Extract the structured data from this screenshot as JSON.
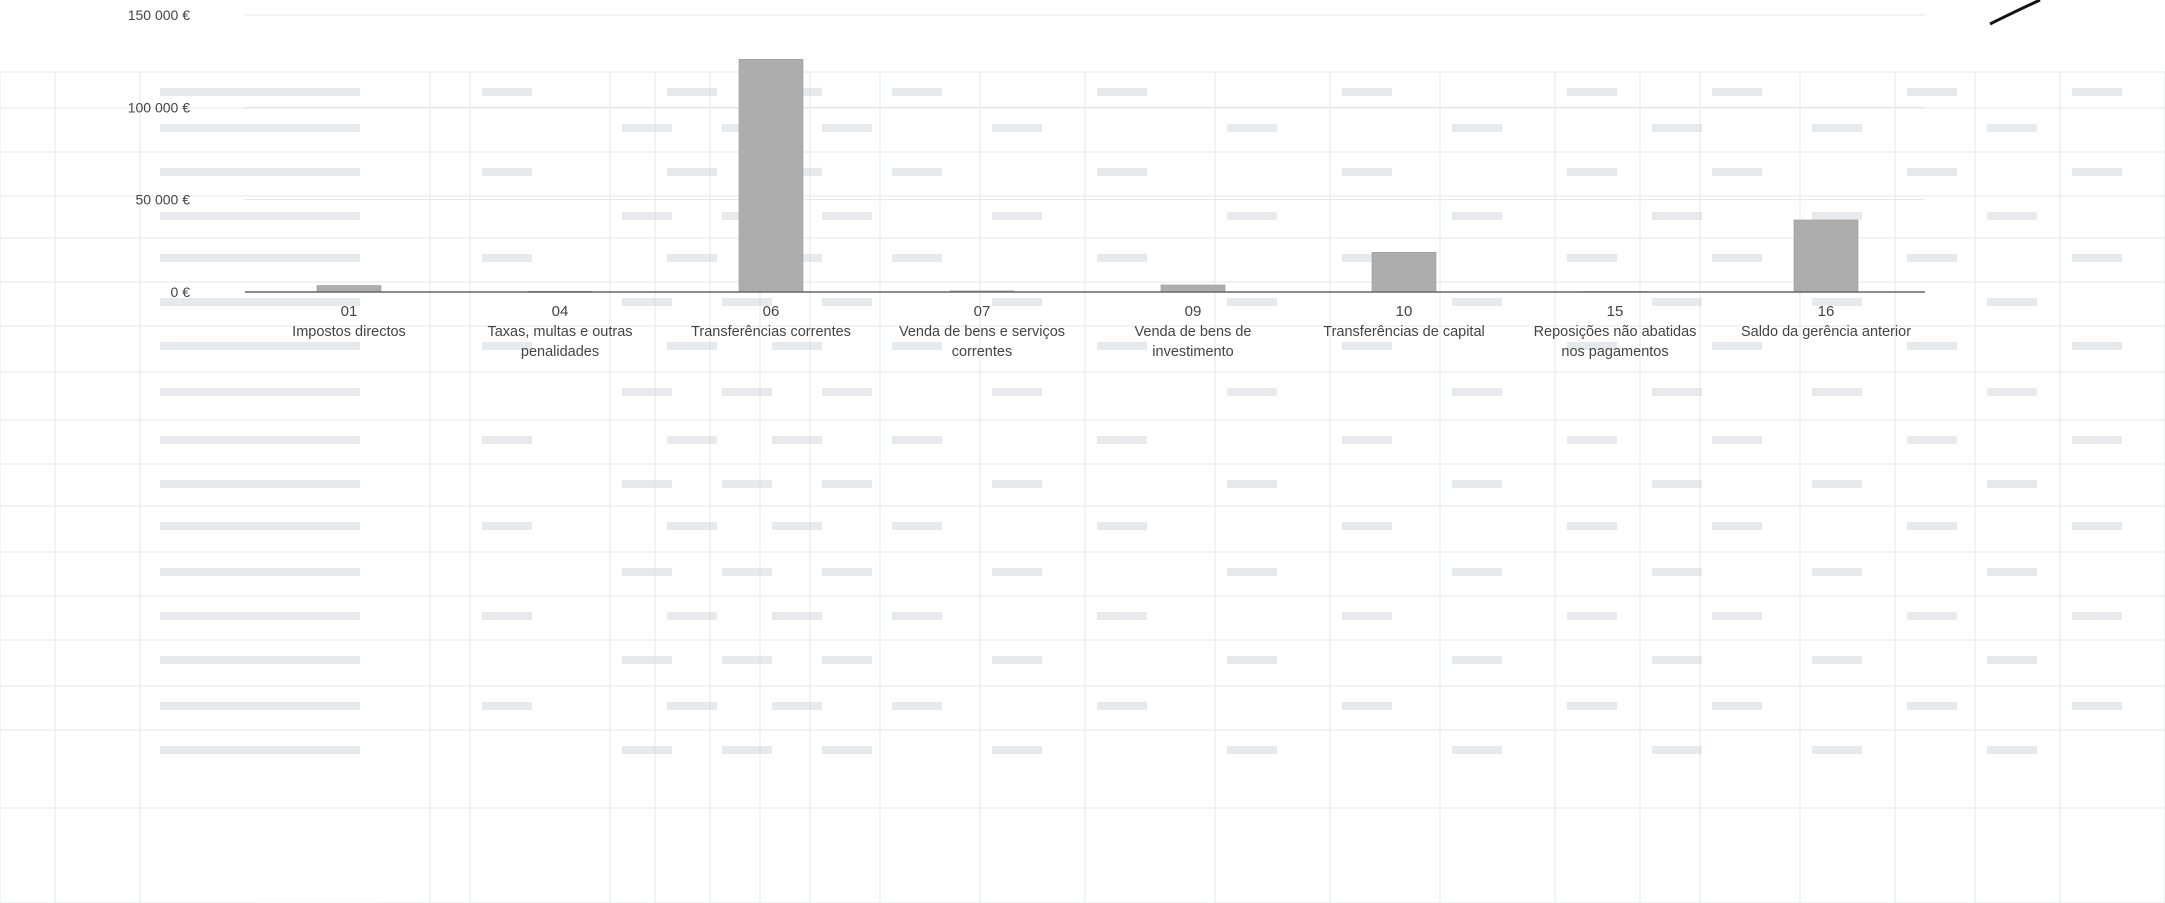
{
  "chart_data": {
    "type": "bar",
    "categories": [
      {
        "code": "01",
        "label": [
          "Impostos directos"
        ]
      },
      {
        "code": "04",
        "label": [
          "Taxas, multas e outras",
          "penalidades"
        ]
      },
      {
        "code": "06",
        "label": [
          "Transferências correntes"
        ]
      },
      {
        "code": "07",
        "label": [
          "Venda de bens e serviços",
          "correntes"
        ]
      },
      {
        "code": "09",
        "label": [
          "Venda de bens de",
          "investimento"
        ]
      },
      {
        "code": "10",
        "label": [
          "Transferências de capital"
        ]
      },
      {
        "code": "15",
        "label": [
          "Reposições não abatidas",
          "nos pagamentos"
        ]
      },
      {
        "code": "16",
        "label": [
          "Saldo da gerência anterior"
        ]
      }
    ],
    "values": [
      3500,
      400,
      126000,
      600,
      3800,
      21500,
      200,
      39000
    ],
    "yticks": [
      {
        "value": 0,
        "label": "0 €"
      },
      {
        "value": 50000,
        "label": "50 000 €"
      },
      {
        "value": 100000,
        "label": "100 000 €"
      },
      {
        "value": 150000,
        "label": "150 000 €"
      }
    ],
    "ylim": [
      0,
      150000
    ],
    "title": "",
    "xlabel": "",
    "ylabel": "",
    "grid": true,
    "legend": "none",
    "colors": {
      "bar": "#adadad",
      "bar_stroke": "#9a9a9a",
      "axis": "#666666",
      "grid": "#e6e6e6",
      "text": "#444444",
      "background_form": "#d0d6da"
    }
  }
}
